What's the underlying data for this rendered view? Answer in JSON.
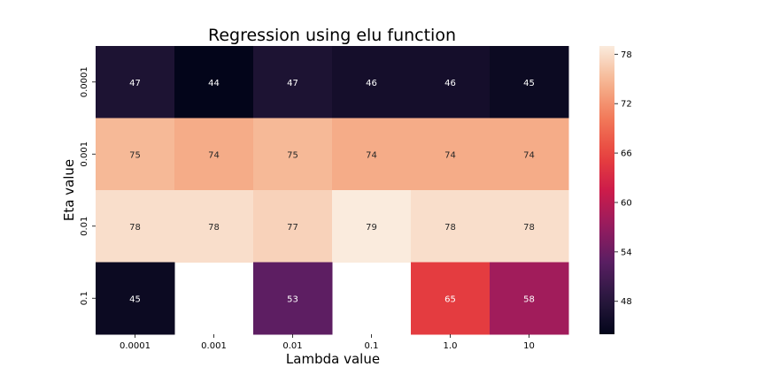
{
  "chart_data": {
    "type": "heatmap",
    "title": "Regression using elu function",
    "xlabel": "Lambda value",
    "ylabel": "Eta value",
    "x_categories": [
      "0.0001",
      "0.001",
      "0.01",
      "0.1",
      "1.0",
      "10"
    ],
    "y_categories": [
      "0.0001",
      "0.001",
      "0.01",
      "0.1"
    ],
    "values": [
      [
        47,
        44,
        47,
        46,
        46,
        45
      ],
      [
        75,
        74,
        75,
        74,
        74,
        74
      ],
      [
        78,
        78,
        77,
        79,
        78,
        78
      ],
      [
        45,
        null,
        53,
        null,
        65,
        58
      ]
    ],
    "colorbar": {
      "ticks": [
        48,
        54,
        60,
        66,
        72,
        78
      ],
      "vmin": 44,
      "vmax": 79,
      "colormap": "rocket"
    }
  }
}
